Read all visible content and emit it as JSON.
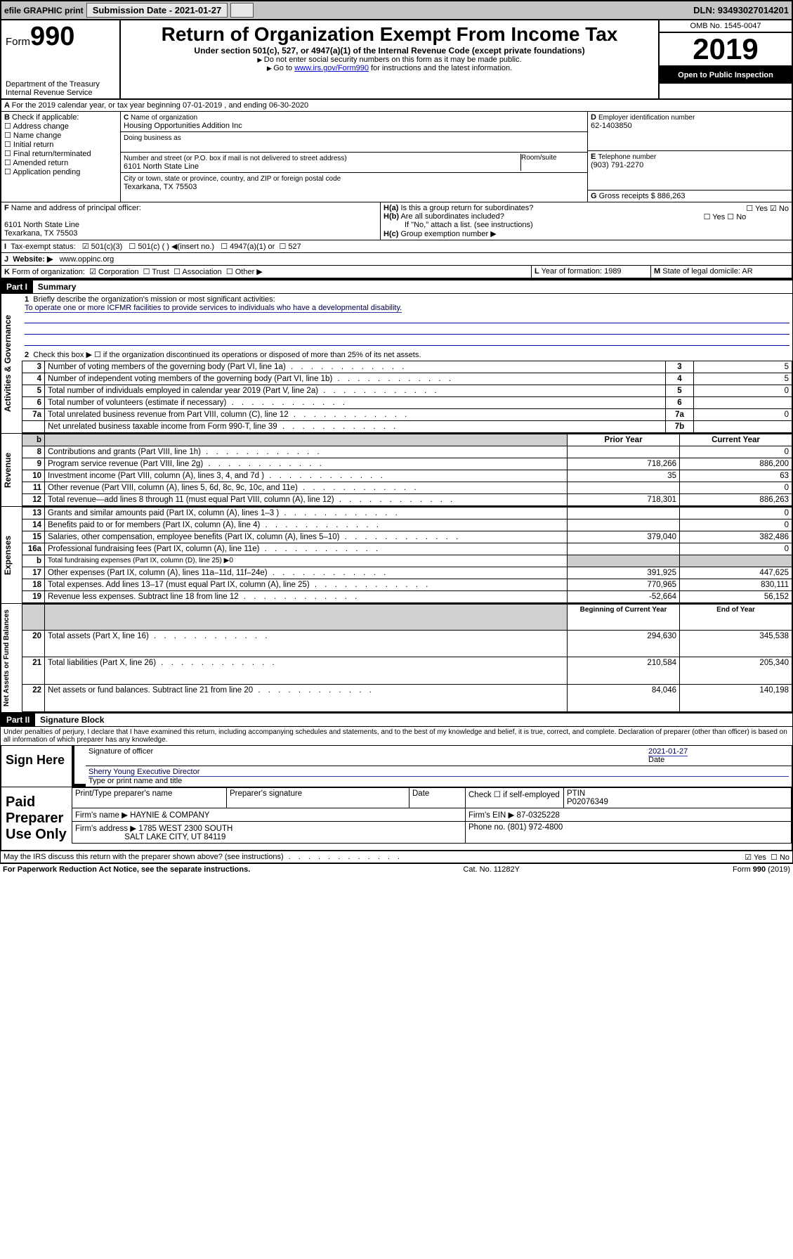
{
  "topbar": {
    "efile": "efile GRAPHIC print",
    "submission": "Submission Date - 2021-01-27",
    "dln": "DLN: 93493027014201"
  },
  "header": {
    "form_prefix": "Form",
    "form_num": "990",
    "dept1": "Department of the Treasury",
    "dept2": "Internal Revenue Service",
    "title": "Return of Organization Exempt From Income Tax",
    "subtitle": "Under section 501(c), 527, or 4947(a)(1) of the Internal Revenue Code (except private foundations)",
    "note1": "Do not enter social security numbers on this form as it may be made public.",
    "note2_a": "Go to ",
    "note2_link": "www.irs.gov/Form990",
    "note2_b": " for instructions and the latest information.",
    "omb": "OMB No. 1545-0047",
    "year": "2019",
    "open": "Open to Public Inspection"
  },
  "secA": {
    "line": "For the 2019 calendar year, or tax year beginning 07-01-2019   , and ending 06-30-2020"
  },
  "secB": {
    "label": "Check if applicable:",
    "items": [
      "Address change",
      "Name change",
      "Initial return",
      "Final return/terminated",
      "Amended return",
      "Application pending"
    ]
  },
  "secC": {
    "name_lbl": "Name of organization",
    "name": "Housing Opportunities Addition Inc",
    "dba_lbl": "Doing business as",
    "addr_lbl": "Number and street (or P.O. box if mail is not delivered to street address)",
    "room_lbl": "Room/suite",
    "addr": "6101 North State Line",
    "city_lbl": "City or town, state or province, country, and ZIP or foreign postal code",
    "city": "Texarkana, TX  75503"
  },
  "secD": {
    "lbl": "Employer identification number",
    "val": "62-1403850"
  },
  "secE": {
    "lbl": "Telephone number",
    "val": "(903) 791-2270"
  },
  "secG": {
    "lbl": "Gross receipts $",
    "val": "886,263"
  },
  "secF": {
    "lbl": "Name and address of principal officer:",
    "l1": "6101 North State Line",
    "l2": "Texarkana, TX  75503"
  },
  "secH": {
    "a": "Is this a group return for subordinates?",
    "b": "Are all subordinates included?",
    "c_note": "If \"No,\" attach a list. (see instructions)",
    "c": "Group exemption number ▶",
    "yes": "Yes",
    "no": "No"
  },
  "secI": {
    "lbl": "Tax-exempt status:",
    "o1": "501(c)(3)",
    "o2": "501(c) (  ) ◀(insert no.)",
    "o3": "4947(a)(1) or",
    "o4": "527"
  },
  "secJ": {
    "lbl": "Website: ▶",
    "val": "www.oppinc.org"
  },
  "secK": {
    "lbl": "Form of organization:",
    "o1": "Corporation",
    "o2": "Trust",
    "o3": "Association",
    "o4": "Other ▶"
  },
  "secL": {
    "lbl": "Year of formation:",
    "val": "1989"
  },
  "secM": {
    "lbl": "State of legal domicile:",
    "val": "AR"
  },
  "parts": {
    "p1": "Part I",
    "p1t": "Summary",
    "p2": "Part II",
    "p2t": "Signature Block"
  },
  "vlabels": {
    "ag": "Activities & Governance",
    "rev": "Revenue",
    "exp": "Expenses",
    "net": "Net Assets or Fund Balances"
  },
  "summary": {
    "q1": "Briefly describe the organization's mission or most significant activities:",
    "mission": "To operate one or more ICFMR facilities to provide services to individuals who have a developmental disability.",
    "q2": "Check this box ▶ ☐  if the organization discontinued its operations or disposed of more than 25% of its net assets.",
    "rows_ag": [
      {
        "n": "3",
        "t": "Number of voting members of the governing body (Part VI, line 1a)",
        "box": "3",
        "v": "5"
      },
      {
        "n": "4",
        "t": "Number of independent voting members of the governing body (Part VI, line 1b)",
        "box": "4",
        "v": "5"
      },
      {
        "n": "5",
        "t": "Total number of individuals employed in calendar year 2019 (Part V, line 2a)",
        "box": "5",
        "v": "0"
      },
      {
        "n": "6",
        "t": "Total number of volunteers (estimate if necessary)",
        "box": "6",
        "v": ""
      },
      {
        "n": "7a",
        "t": "Total unrelated business revenue from Part VIII, column (C), line 12",
        "box": "7a",
        "v": "0"
      },
      {
        "n": "",
        "t": "Net unrelated business taxable income from Form 990-T, line 39",
        "box": "7b",
        "v": ""
      }
    ],
    "col_prior": "Prior Year",
    "col_curr": "Current Year",
    "rows_rev": [
      {
        "n": "8",
        "t": "Contributions and grants (Part VIII, line 1h)",
        "p": "",
        "c": "0"
      },
      {
        "n": "9",
        "t": "Program service revenue (Part VIII, line 2g)",
        "p": "718,266",
        "c": "886,200"
      },
      {
        "n": "10",
        "t": "Investment income (Part VIII, column (A), lines 3, 4, and 7d )",
        "p": "35",
        "c": "63"
      },
      {
        "n": "11",
        "t": "Other revenue (Part VIII, column (A), lines 5, 6d, 8c, 9c, 10c, and 11e)",
        "p": "",
        "c": "0"
      },
      {
        "n": "12",
        "t": "Total revenue—add lines 8 through 11 (must equal Part VIII, column (A), line 12)",
        "p": "718,301",
        "c": "886,263"
      }
    ],
    "rows_exp": [
      {
        "n": "13",
        "t": "Grants and similar amounts paid (Part IX, column (A), lines 1–3 )",
        "p": "",
        "c": "0"
      },
      {
        "n": "14",
        "t": "Benefits paid to or for members (Part IX, column (A), line 4)",
        "p": "",
        "c": "0"
      },
      {
        "n": "15",
        "t": "Salaries, other compensation, employee benefits (Part IX, column (A), lines 5–10)",
        "p": "379,040",
        "c": "382,486"
      },
      {
        "n": "16a",
        "t": "Professional fundraising fees (Part IX, column (A), line 11e)",
        "p": "",
        "c": "0"
      },
      {
        "n": "b",
        "t": "Total fundraising expenses (Part IX, column (D), line 25) ▶0",
        "p": "—",
        "c": "—"
      },
      {
        "n": "17",
        "t": "Other expenses (Part IX, column (A), lines 11a–11d, 11f–24e)",
        "p": "391,925",
        "c": "447,625"
      },
      {
        "n": "18",
        "t": "Total expenses. Add lines 13–17 (must equal Part IX, column (A), line 25)",
        "p": "770,965",
        "c": "830,111"
      },
      {
        "n": "19",
        "t": "Revenue less expenses. Subtract line 18 from line 12",
        "p": "-52,664",
        "c": "56,152"
      }
    ],
    "col_beg": "Beginning of Current Year",
    "col_end": "End of Year",
    "rows_net": [
      {
        "n": "20",
        "t": "Total assets (Part X, line 16)",
        "p": "294,630",
        "c": "345,538"
      },
      {
        "n": "21",
        "t": "Total liabilities (Part X, line 26)",
        "p": "210,584",
        "c": "205,340"
      },
      {
        "n": "22",
        "t": "Net assets or fund balances. Subtract line 21 from line 20",
        "p": "84,046",
        "c": "140,198"
      }
    ]
  },
  "sig": {
    "decl": "Under penalties of perjury, I declare that I have examined this return, including accompanying schedules and statements, and to the best of my knowledge and belief, it is true, correct, and complete. Declaration of preparer (other than officer) is based on all information of which preparer has any knowledge.",
    "sign_here": "Sign Here",
    "sig_officer": "Signature of officer",
    "date": "Date",
    "date_val": "2021-01-27",
    "name_title": "Sherry Young Executive Director",
    "name_lbl": "Type or print name and title",
    "paid": "Paid Preparer Use Only",
    "prep_name_lbl": "Print/Type preparer's name",
    "prep_sig_lbl": "Preparer's signature",
    "check_self": "Check ☐ if self-employed",
    "ptin_lbl": "PTIN",
    "ptin": "P02076349",
    "firm_name_lbl": "Firm's name   ▶",
    "firm_name": "HAYNIE & COMPANY",
    "firm_ein_lbl": "Firm's EIN ▶",
    "firm_ein": "87-0325228",
    "firm_addr_lbl": "Firm's address ▶",
    "firm_addr1": "1785 WEST 2300 SOUTH",
    "firm_addr2": "SALT LAKE CITY, UT  84119",
    "phone_lbl": "Phone no.",
    "phone": "(801) 972-4800",
    "discuss": "May the IRS discuss this return with the preparer shown above? (see instructions)",
    "paperwork": "For Paperwork Reduction Act Notice, see the separate instructions.",
    "cat": "Cat. No. 11282Y",
    "form_foot": "Form 990 (2019)"
  }
}
